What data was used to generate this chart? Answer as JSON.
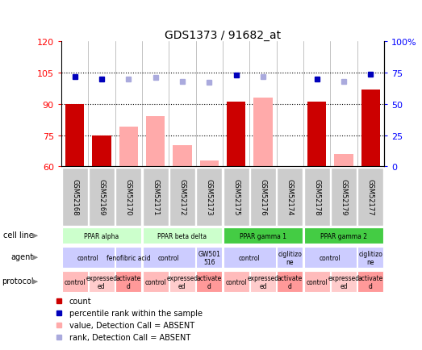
{
  "title": "GDS1373 / 91682_at",
  "samples": [
    "GSM52168",
    "GSM52169",
    "GSM52170",
    "GSM52171",
    "GSM52172",
    "GSM52173",
    "GSM52175",
    "GSM52176",
    "GSM52174",
    "GSM52178",
    "GSM52179",
    "GSM52177"
  ],
  "count_values": [
    90,
    75,
    null,
    null,
    null,
    null,
    91,
    null,
    null,
    91,
    null,
    97
  ],
  "count_absent": [
    null,
    null,
    79,
    84,
    70,
    63,
    null,
    93,
    null,
    null,
    66,
    null
  ],
  "rank_values": [
    72,
    70,
    null,
    null,
    null,
    null,
    73,
    null,
    null,
    70,
    null,
    74
  ],
  "rank_absent": [
    null,
    null,
    70,
    71,
    68,
    67,
    null,
    72,
    null,
    null,
    68,
    null
  ],
  "ylim_left": [
    60,
    120
  ],
  "ylim_right": [
    0,
    100
  ],
  "left_ticks": [
    60,
    75,
    90,
    105,
    120
  ],
  "right_ticks": [
    0,
    25,
    50,
    75,
    100
  ],
  "right_tick_labels": [
    "0",
    "25",
    "50",
    "75",
    "100%"
  ],
  "cell_line_groups": [
    {
      "label": "PPAR alpha",
      "start": 0,
      "end": 3,
      "color": "#ccffcc"
    },
    {
      "label": "PPAR beta delta",
      "start": 3,
      "end": 6,
      "color": "#ccffcc"
    },
    {
      "label": "PPAR gamma 1",
      "start": 6,
      "end": 9,
      "color": "#44cc44"
    },
    {
      "label": "PPAR gamma 2",
      "start": 9,
      "end": 12,
      "color": "#44cc44"
    }
  ],
  "agent_groups": [
    {
      "label": "control",
      "start": 0,
      "end": 2,
      "color": "#ccccff"
    },
    {
      "label": "fenofibric acid",
      "start": 2,
      "end": 3,
      "color": "#ccccff"
    },
    {
      "label": "control",
      "start": 3,
      "end": 5,
      "color": "#ccccff"
    },
    {
      "label": "GW501\n516",
      "start": 5,
      "end": 6,
      "color": "#ccccff"
    },
    {
      "label": "control",
      "start": 6,
      "end": 8,
      "color": "#ccccff"
    },
    {
      "label": "ciglitizo\nne",
      "start": 8,
      "end": 9,
      "color": "#ccccff"
    },
    {
      "label": "control",
      "start": 9,
      "end": 11,
      "color": "#ccccff"
    },
    {
      "label": "ciglitizo\nne",
      "start": 11,
      "end": 12,
      "color": "#ccccff"
    }
  ],
  "protocol_groups": [
    {
      "label": "control",
      "start": 0,
      "end": 1,
      "color": "#ffbbbb"
    },
    {
      "label": "expressed\ned",
      "start": 1,
      "end": 2,
      "color": "#ffcccc"
    },
    {
      "label": "activate\nd",
      "start": 2,
      "end": 3,
      "color": "#ff9999"
    },
    {
      "label": "control",
      "start": 3,
      "end": 4,
      "color": "#ffbbbb"
    },
    {
      "label": "expressed\ned",
      "start": 4,
      "end": 5,
      "color": "#ffcccc"
    },
    {
      "label": "activate\nd",
      "start": 5,
      "end": 6,
      "color": "#ff9999"
    },
    {
      "label": "control",
      "start": 6,
      "end": 7,
      "color": "#ffbbbb"
    },
    {
      "label": "expressed\ned",
      "start": 7,
      "end": 8,
      "color": "#ffcccc"
    },
    {
      "label": "activate\nd",
      "start": 8,
      "end": 9,
      "color": "#ff9999"
    },
    {
      "label": "control",
      "start": 9,
      "end": 10,
      "color": "#ffbbbb"
    },
    {
      "label": "expressed\ned",
      "start": 10,
      "end": 11,
      "color": "#ffcccc"
    },
    {
      "label": "activate\nd",
      "start": 11,
      "end": 12,
      "color": "#ff9999"
    }
  ],
  "bar_color_present": "#cc0000",
  "bar_color_absent": "#ffaaaa",
  "dot_color_present": "#0000bb",
  "dot_color_absent": "#aaaadd",
  "sample_bg_color": "#cccccc",
  "bar_width": 0.7,
  "legend_items": [
    {
      "color": "#cc0000",
      "label": "count",
      "shape": "square"
    },
    {
      "color": "#0000bb",
      "label": "percentile rank within the sample",
      "shape": "square"
    },
    {
      "color": "#ffaaaa",
      "label": "value, Detection Call = ABSENT",
      "shape": "square"
    },
    {
      "color": "#aaaadd",
      "label": "rank, Detection Call = ABSENT",
      "shape": "square"
    }
  ]
}
